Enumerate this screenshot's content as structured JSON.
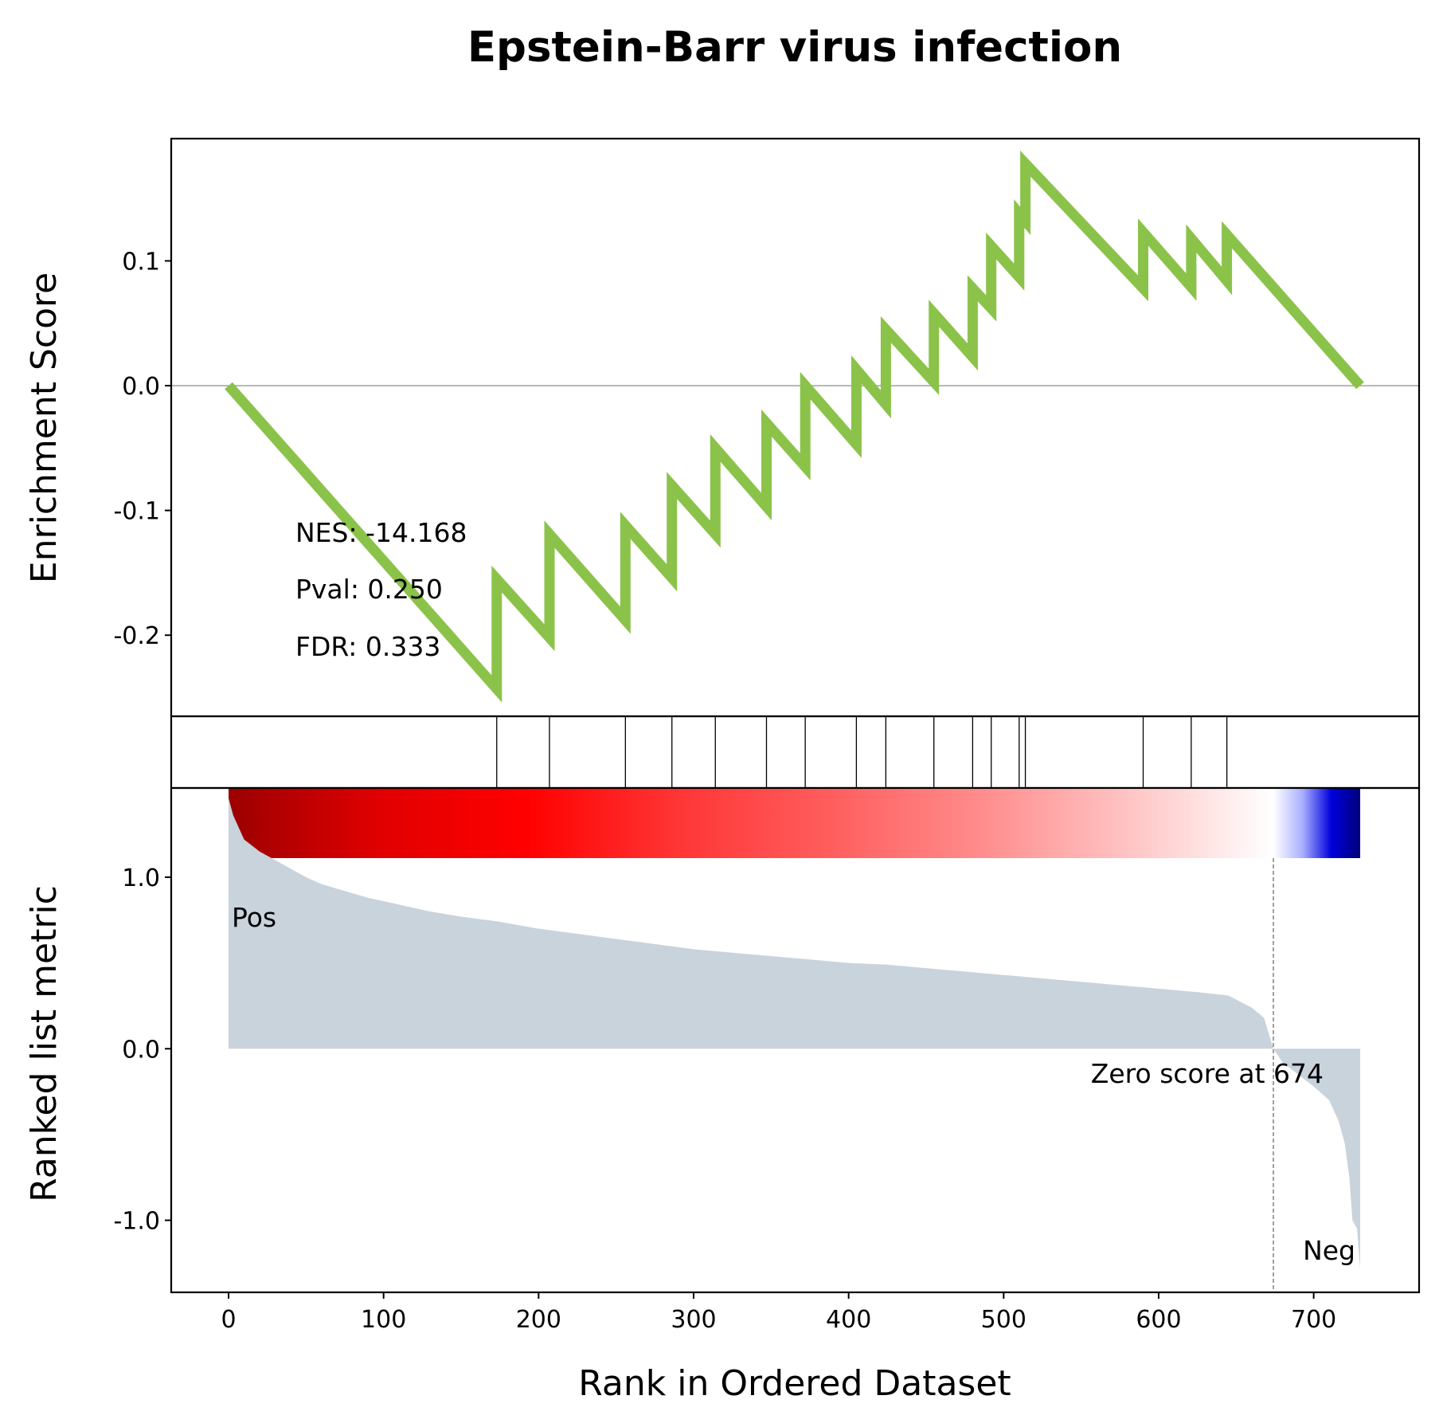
{
  "chart_data": {
    "type": "line",
    "title": "Epstein-Barr virus infection",
    "xlabel": "Rank in Ordered Dataset",
    "xlim": [
      -37,
      768
    ],
    "x_ticks": [
      0,
      100,
      200,
      300,
      400,
      500,
      600,
      700
    ],
    "colors": {
      "es_line": "#8bc34a",
      "metric_fill": "#c9d3dc",
      "frame": "#000000",
      "pos_label": "#ff0000",
      "neg_label": "#0000ff",
      "gradient": [
        "#9b0000",
        "#e00000",
        "#ff0000",
        "#ff3535",
        "#ff5c5c",
        "#ff8a8a",
        "#ffc2c2",
        "#ffffff",
        "#aab0ff",
        "#0000dd",
        "#00007a"
      ]
    },
    "enrichment_panel": {
      "ylabel": "Enrichment Score",
      "ylim": [
        -0.265,
        0.198
      ],
      "y_ticks": [
        {
          "value": 0.1,
          "label": "0.1"
        },
        {
          "value": 0.0,
          "label": "0.0"
        },
        {
          "value": -0.1,
          "label": "-0.1"
        },
        {
          "value": -0.2,
          "label": "-0.2"
        }
      ],
      "zero_line": true,
      "series": [
        {
          "points": [
            [
              0,
              0.0
            ],
            [
              173,
              -0.243
            ],
            [
              173,
              -0.155
            ],
            [
              207,
              -0.202
            ],
            [
              207,
              -0.119
            ],
            [
              256,
              -0.188
            ],
            [
              256,
              -0.112
            ],
            [
              286,
              -0.154
            ],
            [
              286,
              -0.08
            ],
            [
              314,
              -0.119
            ],
            [
              314,
              -0.05
            ],
            [
              347,
              -0.097
            ],
            [
              347,
              -0.03
            ],
            [
              372,
              -0.065
            ],
            [
              372,
              0.0
            ],
            [
              405,
              -0.047
            ],
            [
              405,
              0.013
            ],
            [
              424,
              -0.015
            ],
            [
              424,
              0.045
            ],
            [
              455,
              0.003
            ],
            [
              455,
              0.058
            ],
            [
              480,
              0.023
            ],
            [
              480,
              0.078
            ],
            [
              492,
              0.062
            ],
            [
              492,
              0.112
            ],
            [
              510,
              0.087
            ],
            [
              510,
              0.138
            ],
            [
              514,
              0.132
            ],
            [
              514,
              0.178
            ],
            [
              590,
              0.078
            ],
            [
              590,
              0.123
            ],
            [
              621,
              0.079
            ],
            [
              621,
              0.118
            ],
            [
              644,
              0.084
            ],
            [
              644,
              0.121
            ],
            [
              730,
              0.0
            ]
          ]
        }
      ],
      "stats": {
        "nes": "NES: -14.168",
        "pval": "Pval: 0.250",
        "fdr": "FDR: 0.333"
      }
    },
    "hits_panel": {
      "hit_ranks": [
        173,
        207,
        256,
        286,
        314,
        347,
        372,
        405,
        424,
        455,
        480,
        492,
        510,
        514,
        590,
        621,
        644
      ]
    },
    "metric_panel": {
      "ylabel": "Ranked list metric",
      "ylim": [
        -1.42,
        1.52
      ],
      "y_ticks": [
        {
          "value": 1.0,
          "label": "1.0"
        },
        {
          "value": 0.0,
          "label": "0.0"
        },
        {
          "value": -1.0,
          "label": "-1.0"
        }
      ],
      "n_genes": 731,
      "zero_cross_rank": 674,
      "zero_label": "Zero score at 674",
      "pos_label": "Pos",
      "neg_label": "Neg",
      "profile": [
        [
          0,
          1.46
        ],
        [
          3,
          1.36
        ],
        [
          10,
          1.22
        ],
        [
          20,
          1.15
        ],
        [
          30,
          1.1
        ],
        [
          40,
          1.05
        ],
        [
          50,
          1.0
        ],
        [
          60,
          0.96
        ],
        [
          75,
          0.92
        ],
        [
          90,
          0.88
        ],
        [
          110,
          0.84
        ],
        [
          130,
          0.8
        ],
        [
          150,
          0.77
        ],
        [
          175,
          0.74
        ],
        [
          200,
          0.7
        ],
        [
          225,
          0.67
        ],
        [
          250,
          0.64
        ],
        [
          275,
          0.61
        ],
        [
          300,
          0.58
        ],
        [
          325,
          0.56
        ],
        [
          350,
          0.54
        ],
        [
          375,
          0.52
        ],
        [
          400,
          0.5
        ],
        [
          425,
          0.49
        ],
        [
          450,
          0.47
        ],
        [
          475,
          0.45
        ],
        [
          500,
          0.43
        ],
        [
          525,
          0.41
        ],
        [
          550,
          0.39
        ],
        [
          575,
          0.37
        ],
        [
          600,
          0.35
        ],
        [
          625,
          0.33
        ],
        [
          645,
          0.31
        ],
        [
          660,
          0.24
        ],
        [
          668,
          0.18
        ],
        [
          674,
          0.0
        ],
        [
          680,
          -0.08
        ],
        [
          690,
          -0.15
        ],
        [
          700,
          -0.22
        ],
        [
          710,
          -0.3
        ],
        [
          716,
          -0.42
        ],
        [
          720,
          -0.55
        ],
        [
          723,
          -0.75
        ],
        [
          725,
          -1.0
        ],
        [
          728,
          -1.05
        ],
        [
          730,
          -1.28
        ]
      ]
    }
  }
}
